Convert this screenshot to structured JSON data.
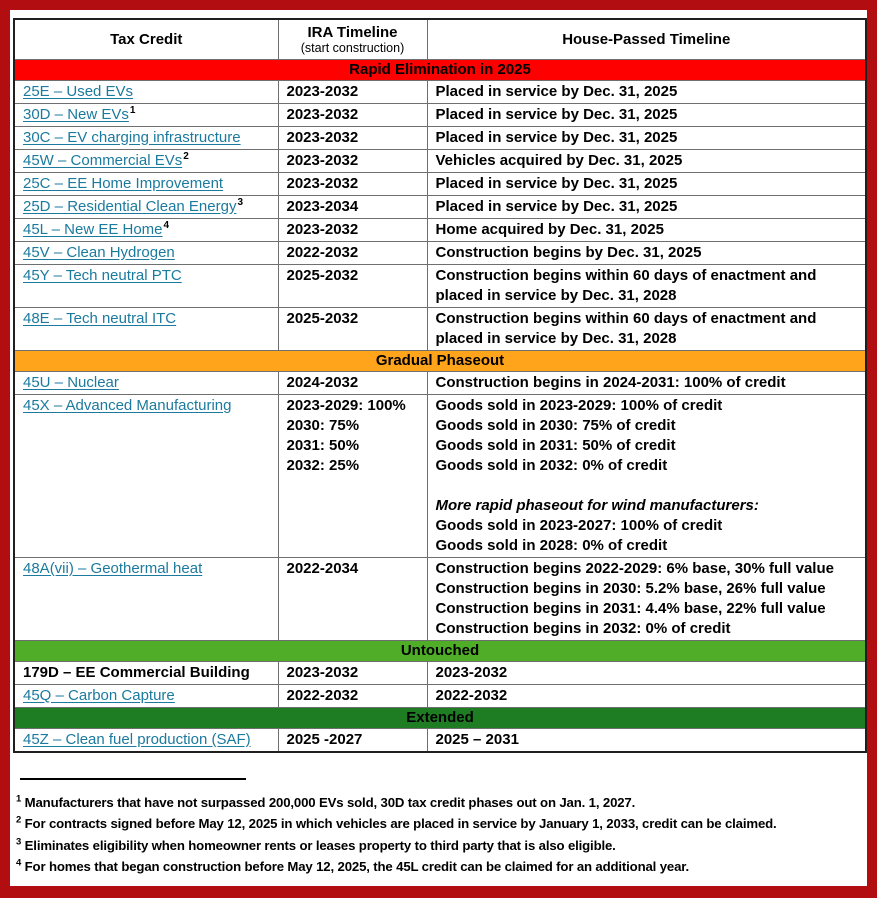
{
  "colors": {
    "page_border": "#b20d11",
    "link_teal": "#1b7a9e",
    "band_red": "#fe0000",
    "band_orange": "#ffa41b",
    "band_light_green": "#4fad27",
    "band_dark_green": "#1e7d22"
  },
  "table": {
    "header": {
      "col1": "Tax Credit",
      "col2_line1": "IRA Timeline",
      "col2_line2": "(start construction)",
      "col3": "House-Passed Timeline"
    },
    "sections": [
      {
        "label": "Rapid Elimination in 2025",
        "band_color": "#fe0000",
        "rows": [
          {
            "credit": "25E – Used EVs",
            "link": true,
            "ira": [
              "2023-2032"
            ],
            "house": [
              "Placed in service by Dec. 31, 2025"
            ]
          },
          {
            "credit": "30D – New EVs",
            "sup": "1",
            "link": true,
            "ira": [
              "2023-2032"
            ],
            "house": [
              "Placed in service by Dec. 31, 2025"
            ]
          },
          {
            "credit": "30C – EV charging infrastructure",
            "link": true,
            "ira": [
              "2023-2032"
            ],
            "house": [
              "Placed in service by Dec. 31, 2025"
            ]
          },
          {
            "credit": "45W – Commercial EVs",
            "sup": "2",
            "link": true,
            "ira": [
              "2023-2032"
            ],
            "house": [
              "Vehicles acquired by Dec. 31, 2025"
            ]
          },
          {
            "credit": "25C – EE Home Improvement",
            "link": true,
            "ira": [
              "2023-2032"
            ],
            "house": [
              "Placed in service by Dec. 31, 2025"
            ]
          },
          {
            "credit": "25D – Residential Clean Energy",
            "sup": "3",
            "link": true,
            "ira": [
              "2023-2034"
            ],
            "house": [
              "Placed in service by Dec. 31, 2025"
            ]
          },
          {
            "credit": "45L – New EE Home",
            "sup": "4",
            "link": true,
            "ira": [
              "2023-2032"
            ],
            "house": [
              "Home acquired by Dec. 31, 2025"
            ]
          },
          {
            "credit": "45V – Clean Hydrogen",
            "link": true,
            "ira": [
              "2022-2032"
            ],
            "house": [
              "Construction begins by Dec. 31, 2025"
            ]
          },
          {
            "credit": "45Y – Tech neutral PTC",
            "link": true,
            "ira": [
              "2025-2032"
            ],
            "house": [
              "Construction begins within 60 days of enactment and placed in service by Dec. 31, 2028"
            ]
          },
          {
            "credit": "48E – Tech neutral ITC",
            "link": true,
            "ira": [
              "2025-2032"
            ],
            "house": [
              "Construction begins within 60 days of enactment and placed in service by Dec. 31, 2028"
            ]
          }
        ]
      },
      {
        "label": "Gradual Phaseout",
        "band_color": "#ffa41b",
        "rows": [
          {
            "credit": "45U – Nuclear",
            "link": true,
            "ira": [
              "2024-2032"
            ],
            "house": [
              "Construction begins in 2024-2031: 100% of credit"
            ]
          },
          {
            "credit": "45X – Advanced Manufacturing",
            "link": true,
            "ira": [
              "2023-2029: 100%",
              "2030: 75%",
              "2031: 50%",
              "2032: 25%"
            ],
            "house": [
              "Goods sold in 2023-2029: 100% of credit",
              "Goods sold in 2030: 75% of credit",
              "Goods sold in 2031: 50% of credit",
              "Goods sold in 2032: 0% of credit",
              "",
              {
                "t": "More rapid phaseout for wind manufacturers:",
                "i": true
              },
              "Goods sold in 2023-2027: 100% of credit",
              "Goods sold in 2028: 0% of credit"
            ]
          },
          {
            "credit": "48A(vii) – Geothermal heat",
            "link": true,
            "ira": [
              "2022-2034"
            ],
            "house": [
              "Construction begins 2022-2029: 6% base, 30% full value",
              "Construction begins in 2030: 5.2% base, 26% full value",
              "Construction begins in 2031: 4.4% base, 22% full value",
              "Construction begins in 2032: 0% of credit"
            ]
          }
        ]
      },
      {
        "label": "Untouched",
        "band_color": "#4fad27",
        "rows": [
          {
            "credit": "179D – EE Commercial Building",
            "link": false,
            "ira": [
              "2023-2032"
            ],
            "house": [
              "2023-2032"
            ]
          },
          {
            "credit": "45Q – Carbon Capture",
            "link": true,
            "ira": [
              "2022-2032"
            ],
            "house": [
              "2022-2032"
            ]
          }
        ]
      },
      {
        "label": "Extended",
        "band_color": "#1e7d22",
        "rows": [
          {
            "credit": "45Z – Clean fuel production (SAF)",
            "link": true,
            "ira": [
              "2025 -2027"
            ],
            "house": [
              "2025 – 2031"
            ]
          }
        ]
      }
    ]
  },
  "footnotes": [
    {
      "sup": "1",
      "text": "Manufacturers that have not surpassed 200,000 EVs sold, 30D tax credit phases out on Jan. 1, 2027."
    },
    {
      "sup": "2",
      "text": "For contracts signed before May 12, 2025 in which vehicles are placed in service by January 1, 2033, credit can be claimed."
    },
    {
      "sup": "3",
      "text": "Eliminates eligibility when homeowner rents or leases property to third party that is also eligible."
    },
    {
      "sup": "4",
      "text": "For homes that began construction before May 12, 2025, the 45L credit can be claimed for an additional year."
    }
  ]
}
